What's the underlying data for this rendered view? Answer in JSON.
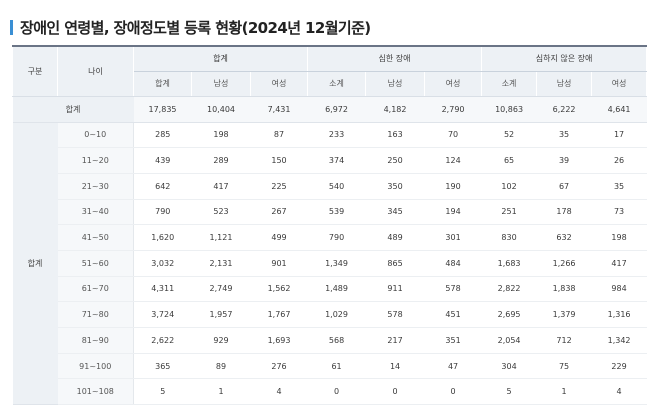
{
  "title": "장애인 연령별, 장애정도별 등록 현황(2024년 12월기준)",
  "header": {
    "col_category": "구분",
    "col_age": "나이",
    "groups": [
      "합계",
      "심한 장애",
      "심하지 않은 장애"
    ],
    "subcols": [
      [
        "합계",
        "남성",
        "여성"
      ],
      [
        "소계",
        "남성",
        "여성"
      ],
      [
        "소계",
        "남성",
        "여성"
      ]
    ]
  },
  "total_row": {
    "label": "합계",
    "values": [
      "17,835",
      "10,404",
      "7,431",
      "6,972",
      "4,182",
      "2,790",
      "10,863",
      "6,222",
      "4,641"
    ]
  },
  "group_label": "합계",
  "rows": [
    {
      "age": "0~10",
      "values": [
        "285",
        "198",
        "87",
        "233",
        "163",
        "70",
        "52",
        "35",
        "17"
      ]
    },
    {
      "age": "11~20",
      "values": [
        "439",
        "289",
        "150",
        "374",
        "250",
        "124",
        "65",
        "39",
        "26"
      ]
    },
    {
      "age": "21~30",
      "values": [
        "642",
        "417",
        "225",
        "540",
        "350",
        "190",
        "102",
        "67",
        "35"
      ]
    },
    {
      "age": "31~40",
      "values": [
        "790",
        "523",
        "267",
        "539",
        "345",
        "194",
        "251",
        "178",
        "73"
      ]
    },
    {
      "age": "41~50",
      "values": [
        "1,620",
        "1,121",
        "499",
        "790",
        "489",
        "301",
        "830",
        "632",
        "198"
      ]
    },
    {
      "age": "51~60",
      "values": [
        "3,032",
        "2,131",
        "901",
        "1,349",
        "865",
        "484",
        "1,683",
        "1,266",
        "417"
      ]
    },
    {
      "age": "61~70",
      "values": [
        "4,311",
        "2,749",
        "1,562",
        "1,489",
        "911",
        "578",
        "2,822",
        "1,838",
        "984"
      ]
    },
    {
      "age": "71~80",
      "values": [
        "3,724",
        "1,957",
        "1,767",
        "1,029",
        "578",
        "451",
        "2,695",
        "1,379",
        "1,316"
      ]
    },
    {
      "age": "81~90",
      "values": [
        "2,622",
        "929",
        "1,693",
        "568",
        "217",
        "351",
        "2,054",
        "712",
        "1,342"
      ]
    },
    {
      "age": "91~100",
      "values": [
        "365",
        "89",
        "276",
        "61",
        "14",
        "47",
        "304",
        "75",
        "229"
      ]
    },
    {
      "age": "101~108",
      "values": [
        "5",
        "1",
        "4",
        "0",
        "0",
        "0",
        "5",
        "1",
        "4"
      ]
    }
  ],
  "colors": {
    "accent": "#3a8fd4",
    "header_bg": "#edf1f5",
    "top_border": "#6a7486"
  }
}
